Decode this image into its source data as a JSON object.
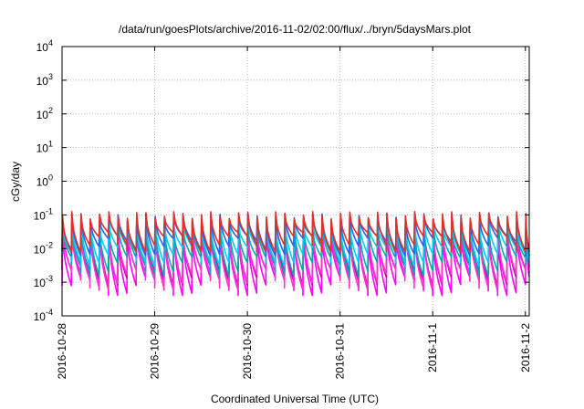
{
  "chart_data": {
    "type": "line",
    "title": "/data/run/goesPlots/archive/2016-11-02/02:00/flux/../bryn/5daysMars.plot",
    "xlabel": "Coordinated Universal Time (UTC)",
    "ylabel": "cGy/day",
    "yscale": "log",
    "ylim": [
      0.0001,
      10000
    ],
    "xlim": [
      "2016-10-28T00:00",
      "2016-11-02T01:00"
    ],
    "grid": true,
    "legend": "none",
    "y_ticks": [
      {
        "base": "10",
        "exp": "-4",
        "value": 0.0001
      },
      {
        "base": "10",
        "exp": "-3",
        "value": 0.001
      },
      {
        "base": "10",
        "exp": "-2",
        "value": 0.01
      },
      {
        "base": "10",
        "exp": "-1",
        "value": 0.1
      },
      {
        "base": "10",
        "exp": "0",
        "value": 1
      },
      {
        "base": "10",
        "exp": "1",
        "value": 10
      },
      {
        "base": "10",
        "exp": "2",
        "value": 100
      },
      {
        "base": "10",
        "exp": "3",
        "value": 1000
      },
      {
        "base": "10",
        "exp": "4",
        "value": 10000
      }
    ],
    "x_ticks": [
      {
        "label": "2016-10-28",
        "value": "2016-10-28T00:00"
      },
      {
        "label": "2016-10-29",
        "value": "2016-10-29T00:00"
      },
      {
        "label": "2016-10-30",
        "value": "2016-10-30T00:00"
      },
      {
        "label": "2016-10-31",
        "value": "2016-10-31T00:00"
      },
      {
        "label": "2016-11-1",
        "value": "2016-11-01T00:00"
      },
      {
        "label": "2016-11-2",
        "value": "2016-11-02T00:00"
      }
    ],
    "series_pattern": "sawtooth",
    "cycle_hours": 2.4,
    "series": [
      {
        "color": "#ff00ff",
        "peak": 0.035,
        "trough": 0.0008
      },
      {
        "color": "#cc00aa",
        "peak": 0.045,
        "trough": 0.0015
      },
      {
        "color": "#ff33cc",
        "peak": 0.04,
        "trough": 0.0012
      },
      {
        "color": "#00aaaa",
        "peak": 0.05,
        "trough": 0.003
      },
      {
        "color": "#00ccff",
        "peak": 0.07,
        "trough": 0.006
      },
      {
        "color": "#2266ee",
        "peak": 0.09,
        "trough": 0.012
      },
      {
        "color": "#e0302a",
        "peak": 0.1,
        "trough": 0.015
      }
    ]
  }
}
